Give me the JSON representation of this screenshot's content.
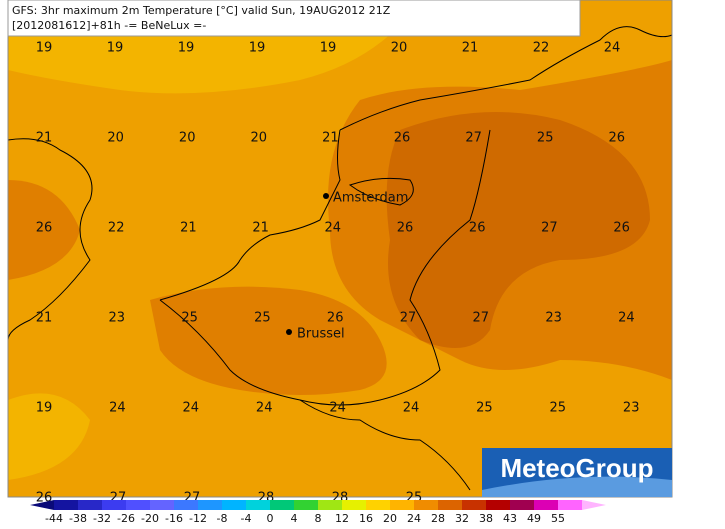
{
  "header": {
    "title": "GFS: 3hr maximum 2m Temperature [°C] valid Sun, 19AUG2012 21Z",
    "subtitle": "[2012081612]+81h -= BeNeLux =-"
  },
  "grid": {
    "rows": [
      [
        "19",
        "19",
        "19",
        "19",
        "19",
        "20",
        "21",
        "22",
        "24"
      ],
      [
        "21",
        "20",
        "20",
        "20",
        "21",
        "26",
        "27",
        "25",
        "26"
      ],
      [
        "26",
        "22",
        "21",
        "21",
        "24",
        "26",
        "26",
        "27",
        "26"
      ],
      [
        "21",
        "23",
        "25",
        "25",
        "26",
        "27",
        "27",
        "23",
        "24"
      ],
      [
        "19",
        "24",
        "24",
        "24",
        "24",
        "24",
        "25",
        "25",
        "23"
      ],
      [
        "26",
        "27",
        "27",
        "28",
        "28",
        "25"
      ]
    ]
  },
  "cities": [
    {
      "name": "Amsterdam"
    },
    {
      "name": "Brussel"
    }
  ],
  "colorbar": {
    "labels": [
      "-44",
      "-38",
      "-32",
      "-26",
      "-20",
      "-16",
      "-12",
      "-8",
      "-4",
      "0",
      "4",
      "8",
      "12",
      "16",
      "20",
      "24",
      "28",
      "32",
      "38",
      "43",
      "49",
      "55"
    ],
    "colors": [
      "#0a0a78",
      "#1414a0",
      "#2828c8",
      "#3c3cf0",
      "#5050ff",
      "#6464ff",
      "#3c78ff",
      "#1e96ff",
      "#00b4ff",
      "#00d2dc",
      "#00c878",
      "#32d232",
      "#a0e614",
      "#e6f000",
      "#ffd200",
      "#ffb400",
      "#f08c00",
      "#dc6400",
      "#c83200",
      "#b40000",
      "#a00050",
      "#dc00b4",
      "#ff64ff",
      "#ffb4ff"
    ]
  },
  "logo": {
    "text": "MeteoGroup"
  }
}
